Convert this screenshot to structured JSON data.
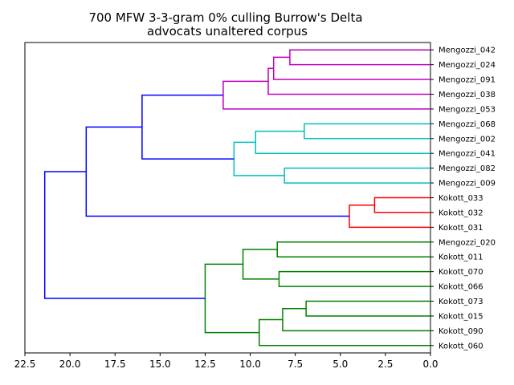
{
  "chart_data": {
    "type": "dendrogram",
    "orientation": "left",
    "title": "700 MFW 3-3-gram 0% culling Burrow's Delta",
    "subtitle": "advocats unaltered corpus",
    "xlim": [
      22.5,
      0
    ],
    "xticks": [
      22.5,
      20.0,
      17.5,
      15.0,
      12.5,
      10.0,
      7.5,
      5.0,
      2.5,
      0.0
    ],
    "xtick_labels": [
      "22.5",
      "20.0",
      "17.5",
      "15.0",
      "12.5",
      "10.0",
      "7.5",
      "5.0",
      "2.5",
      "0.0"
    ],
    "leaves": [
      "Mengozzi_042",
      "Mengozzi_024",
      "Mengozzi_091",
      "Mengozzi_038",
      "Mengozzi_053",
      "Mengozzi_068",
      "Mengozzi_002",
      "Mengozzi_041",
      "Mengozzi_082",
      "Mengozzi_009",
      "Kokott_033",
      "Kokott_032",
      "Kokott_031",
      "Mengozzi_020",
      "Kokott_011",
      "Kokott_070",
      "Kokott_066",
      "Kokott_073",
      "Kokott_015",
      "Kokott_090",
      "Kokott_060"
    ],
    "colors": {
      "magenta": "#bf00bf",
      "cyan": "#00bfbf",
      "red": "#ff0000",
      "green": "#008000",
      "blue": "#0000ff"
    },
    "merges": [
      {
        "id": "m1",
        "left": 0,
        "right": 1,
        "height": 7.8,
        "color": "magenta"
      },
      {
        "id": "m2",
        "left": "m1",
        "right": 2,
        "height": 8.7,
        "color": "magenta"
      },
      {
        "id": "m3",
        "left": "m2",
        "right": 3,
        "height": 9.0,
        "color": "magenta"
      },
      {
        "id": "m4",
        "left": "m3",
        "right": 4,
        "height": 11.5,
        "color": "magenta"
      },
      {
        "id": "c1",
        "left": 5,
        "right": 6,
        "height": 7.0,
        "color": "cyan"
      },
      {
        "id": "c2",
        "left": "c1",
        "right": 7,
        "height": 9.7,
        "color": "cyan"
      },
      {
        "id": "c3",
        "left": 8,
        "right": 9,
        "height": 8.1,
        "color": "cyan"
      },
      {
        "id": "c4",
        "left": "c2",
        "right": "c3",
        "height": 10.9,
        "color": "cyan"
      },
      {
        "id": "b1",
        "left": "m4",
        "right": "c4",
        "height": 16.0,
        "color": "blue"
      },
      {
        "id": "r1",
        "left": 10,
        "right": 11,
        "height": 3.1,
        "color": "red"
      },
      {
        "id": "r2",
        "left": "r1",
        "right": 12,
        "height": 4.5,
        "color": "red"
      },
      {
        "id": "b2",
        "left": "b1",
        "right": "r2",
        "height": 19.1,
        "color": "blue"
      },
      {
        "id": "g1",
        "left": 13,
        "right": 14,
        "height": 8.5,
        "color": "green"
      },
      {
        "id": "g2",
        "left": 15,
        "right": 16,
        "height": 8.4,
        "color": "green"
      },
      {
        "id": "g3",
        "left": "g1",
        "right": "g2",
        "height": 10.4,
        "color": "green"
      },
      {
        "id": "g4",
        "left": 17,
        "right": 18,
        "height": 6.9,
        "color": "green"
      },
      {
        "id": "g5",
        "left": "g4",
        "right": 19,
        "height": 8.2,
        "color": "green"
      },
      {
        "id": "g6",
        "left": "g5",
        "right": 20,
        "height": 9.5,
        "color": "green"
      },
      {
        "id": "g7",
        "left": "g3",
        "right": "g6",
        "height": 12.5,
        "color": "green"
      },
      {
        "id": "b3",
        "left": "b2",
        "right": "g7",
        "height": 21.4,
        "color": "blue"
      }
    ]
  }
}
